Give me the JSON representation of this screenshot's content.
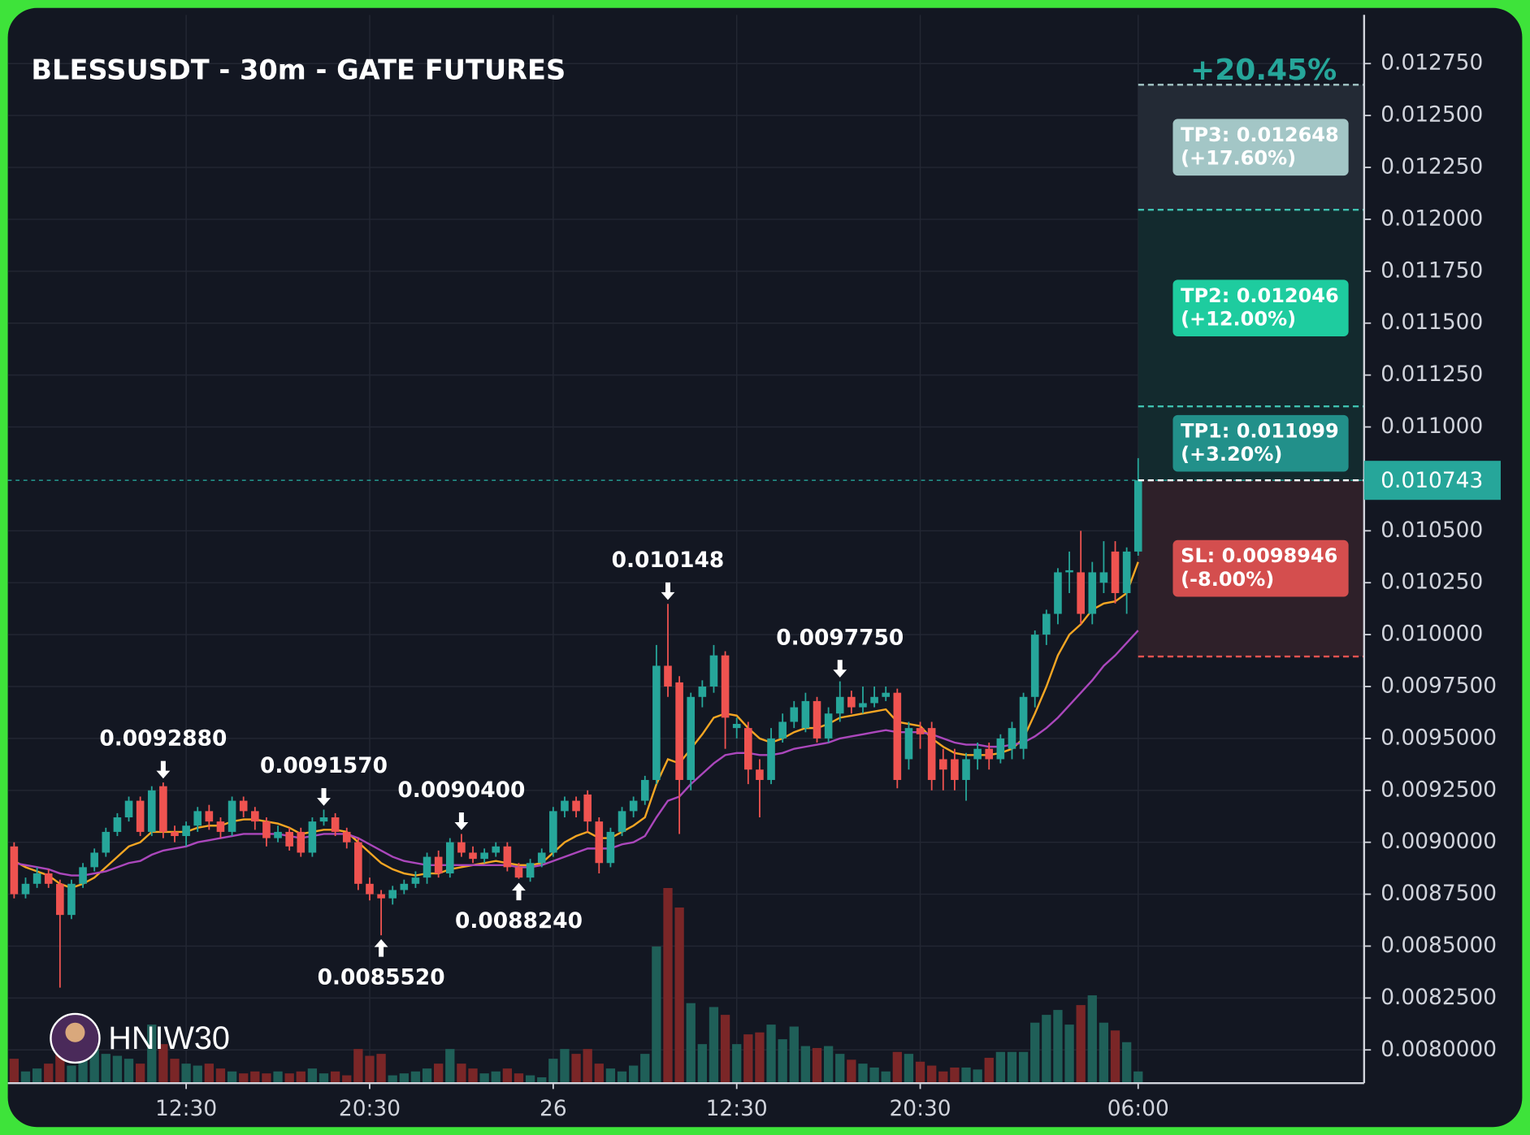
{
  "chart_data": {
    "type": "candlestick",
    "title": "BLESSUSDT - 30m - GATE FUTURES",
    "watermark": "HNIW30",
    "open": [
      0.00898,
      0.00875,
      0.0088,
      0.00885,
      0.0088,
      0.00865,
      0.0088,
      0.00888,
      0.00895,
      0.00905,
      0.00912,
      0.0092,
      0.00905,
      0.00927,
      0.00905,
      0.00903,
      0.00908,
      0.00915,
      0.0091,
      0.00905,
      0.0092,
      0.00915,
      0.0091,
      0.00902,
      0.00905,
      0.00905,
      0.00895,
      0.0091,
      0.00912,
      0.00905,
      0.009,
      0.0088,
      0.00875,
      0.00873,
      0.00877,
      0.0088,
      0.00883,
      0.00893,
      0.00885,
      0.009,
      0.00895,
      0.00892,
      0.00895,
      0.00898,
      0.00888,
      0.00883,
      0.0089,
      0.00895,
      0.00915,
      0.0092,
      0.00923,
      0.0091,
      0.0089,
      0.00905,
      0.00915,
      0.0092,
      0.0093,
      0.00985,
      0.00977,
      0.0093,
      0.0097,
      0.00975,
      0.0099,
      0.00955,
      0.00955,
      0.00935,
      0.0093,
      0.0095,
      0.00958,
      0.00955,
      0.00968,
      0.0095,
      0.00962,
      0.0097,
      0.00965,
      0.00967,
      0.0097,
      0.00972,
      0.0094,
      0.00955,
      0.00955,
      0.0094,
      0.0094,
      0.0093,
      0.0094,
      0.00945,
      0.0094,
      0.00945,
      0.00945,
      0.0097,
      0.01,
      0.0101,
      0.0103,
      0.0103,
      0.0101,
      0.01025,
      0.0104,
      0.0102,
      0.0104
    ],
    "high": [
      0.009,
      0.00883,
      0.00888,
      0.00887,
      0.00882,
      0.00882,
      0.0089,
      0.00897,
      0.00907,
      0.00914,
      0.00922,
      0.00922,
      0.00927,
      0.009288,
      0.00908,
      0.0091,
      0.00917,
      0.00918,
      0.00912,
      0.00922,
      0.00922,
      0.00917,
      0.00912,
      0.00908,
      0.00907,
      0.00907,
      0.00912,
      0.009157,
      0.00914,
      0.00907,
      0.00902,
      0.00883,
      0.00877,
      0.00879,
      0.00882,
      0.00886,
      0.00895,
      0.00896,
      0.00902,
      0.00904,
      0.00898,
      0.00897,
      0.009,
      0.009,
      0.0089,
      0.00892,
      0.00897,
      0.00917,
      0.00922,
      0.00922,
      0.00925,
      0.00912,
      0.00907,
      0.00917,
      0.00922,
      0.00932,
      0.00995,
      0.010148,
      0.0098,
      0.00972,
      0.00978,
      0.00995,
      0.00992,
      0.0096,
      0.00958,
      0.0094,
      0.00955,
      0.00962,
      0.00968,
      0.00972,
      0.0097,
      0.00965,
      0.009775,
      0.00973,
      0.00975,
      0.00975,
      0.00975,
      0.00974,
      0.00958,
      0.00958,
      0.00958,
      0.00945,
      0.00945,
      0.00943,
      0.00948,
      0.00948,
      0.00952,
      0.00958,
      0.00972,
      0.01002,
      0.01012,
      0.01032,
      0.0104,
      0.0105,
      0.01035,
      0.01045,
      0.01045,
      0.01042,
      0.01085
    ],
    "low": [
      0.00873,
      0.00873,
      0.00878,
      0.00878,
      0.0083,
      0.00863,
      0.00878,
      0.00886,
      0.00893,
      0.00903,
      0.0091,
      0.00903,
      0.00903,
      0.00902,
      0.009,
      0.00898,
      0.00905,
      0.00906,
      0.00902,
      0.00903,
      0.00912,
      0.00906,
      0.00898,
      0.009,
      0.00896,
      0.00893,
      0.00893,
      0.00908,
      0.00903,
      0.00897,
      0.00877,
      0.00872,
      0.008552,
      0.0087,
      0.00875,
      0.00878,
      0.0088,
      0.00883,
      0.00883,
      0.00893,
      0.0089,
      0.0089,
      0.00893,
      0.00886,
      0.008824,
      0.00881,
      0.00888,
      0.00893,
      0.00912,
      0.00912,
      0.00905,
      0.00885,
      0.00888,
      0.00903,
      0.00912,
      0.00918,
      0.00928,
      0.0097,
      0.00904,
      0.00925,
      0.00965,
      0.00972,
      0.00945,
      0.0095,
      0.00928,
      0.00912,
      0.00928,
      0.00948,
      0.00955,
      0.00953,
      0.00948,
      0.00948,
      0.00958,
      0.00962,
      0.00962,
      0.00965,
      0.00968,
      0.00926,
      0.00935,
      0.00945,
      0.00925,
      0.00925,
      0.00925,
      0.0092,
      0.00935,
      0.00935,
      0.00938,
      0.0094,
      0.0094,
      0.00965,
      0.00995,
      0.01005,
      0.0102,
      0.01005,
      0.01005,
      0.0102,
      0.01015,
      0.0101,
      0.01038
    ],
    "close": [
      0.00875,
      0.0088,
      0.00885,
      0.0088,
      0.00865,
      0.0088,
      0.00888,
      0.00895,
      0.00905,
      0.00912,
      0.0092,
      0.00905,
      0.00925,
      0.00905,
      0.00903,
      0.00908,
      0.00915,
      0.0091,
      0.00905,
      0.0092,
      0.00915,
      0.0091,
      0.00902,
      0.00905,
      0.00898,
      0.00895,
      0.0091,
      0.00912,
      0.00905,
      0.009,
      0.0088,
      0.00875,
      0.00873,
      0.00877,
      0.0088,
      0.00883,
      0.00893,
      0.00885,
      0.009,
      0.00895,
      0.00892,
      0.00895,
      0.00898,
      0.00888,
      0.00883,
      0.0089,
      0.00895,
      0.00915,
      0.0092,
      0.00915,
      0.0091,
      0.0089,
      0.00905,
      0.00915,
      0.0092,
      0.0093,
      0.00985,
      0.00975,
      0.0093,
      0.0097,
      0.00975,
      0.0099,
      0.0096,
      0.00957,
      0.00935,
      0.0093,
      0.0095,
      0.00958,
      0.00965,
      0.00968,
      0.0095,
      0.00962,
      0.0097,
      0.00965,
      0.00967,
      0.0097,
      0.00972,
      0.0093,
      0.00955,
      0.00952,
      0.0093,
      0.00935,
      0.0093,
      0.0094,
      0.00945,
      0.0094,
      0.0095,
      0.00955,
      0.0097,
      0.01,
      0.0101,
      0.0103,
      0.01031,
      0.0101,
      0.0103,
      0.0103,
      0.0102,
      0.0104,
      0.010743
    ],
    "volume": [
      25,
      12,
      15,
      20,
      30,
      18,
      25,
      35,
      30,
      28,
      25,
      20,
      60,
      40,
      25,
      20,
      18,
      20,
      15,
      12,
      10,
      12,
      10,
      12,
      10,
      12,
      15,
      10,
      12,
      8,
      35,
      28,
      30,
      8,
      10,
      12,
      15,
      20,
      35,
      20,
      15,
      10,
      12,
      15,
      10,
      8,
      6,
      25,
      35,
      30,
      35,
      20,
      15,
      12,
      18,
      30,
      140,
      200,
      180,
      82,
      40,
      78,
      70,
      40,
      50,
      52,
      60,
      45,
      58,
      38,
      36,
      38,
      30,
      24,
      20,
      16,
      12,
      32,
      30,
      22,
      18,
      12,
      16,
      16,
      14,
      26,
      32,
      32,
      32,
      62,
      70,
      75,
      60,
      80,
      90,
      62,
      54,
      42,
      12
    ],
    "vlim": [
      0,
      230
    ],
    "moving_averages": [
      {
        "color": "#f5a623",
        "values": [
          0.00891,
          0.00888,
          0.00886,
          0.00884,
          0.0088,
          0.00878,
          0.0088,
          0.00883,
          0.00888,
          0.00893,
          0.00898,
          0.009,
          0.00905,
          0.00905,
          0.00905,
          0.00905,
          0.00907,
          0.00908,
          0.00908,
          0.0091,
          0.00911,
          0.00911,
          0.0091,
          0.00909,
          0.00907,
          0.00904,
          0.00905,
          0.00906,
          0.00906,
          0.00905,
          0.009,
          0.00895,
          0.0089,
          0.00887,
          0.00885,
          0.00884,
          0.00885,
          0.00885,
          0.00887,
          0.00888,
          0.00889,
          0.0089,
          0.00891,
          0.0089,
          0.00889,
          0.00889,
          0.0089,
          0.00895,
          0.009,
          0.00903,
          0.00905,
          0.00902,
          0.00902,
          0.00905,
          0.00908,
          0.00912,
          0.00928,
          0.0094,
          0.00938,
          0.00945,
          0.00952,
          0.0096,
          0.00962,
          0.00961,
          0.00955,
          0.0095,
          0.00948,
          0.0095,
          0.00953,
          0.00955,
          0.00955,
          0.00957,
          0.0096,
          0.00961,
          0.00962,
          0.00963,
          0.00964,
          0.00958,
          0.00957,
          0.00956,
          0.0095,
          0.00946,
          0.00943,
          0.00942,
          0.00942,
          0.00942,
          0.00943,
          0.00945,
          0.0095,
          0.00962,
          0.00975,
          0.0099,
          0.01,
          0.01005,
          0.01012,
          0.01015,
          0.01016,
          0.0102,
          0.01035
        ]
      },
      {
        "color": "#ab47bc",
        "values": [
          0.0089,
          0.00889,
          0.00888,
          0.00887,
          0.00885,
          0.00884,
          0.00884,
          0.00885,
          0.00886,
          0.00888,
          0.0089,
          0.00891,
          0.00894,
          0.00896,
          0.00897,
          0.00898,
          0.009,
          0.00901,
          0.00902,
          0.00903,
          0.00904,
          0.00904,
          0.00904,
          0.00904,
          0.00903,
          0.00902,
          0.00903,
          0.00904,
          0.00904,
          0.00904,
          0.00902,
          0.00899,
          0.00896,
          0.00893,
          0.00891,
          0.0089,
          0.00889,
          0.00889,
          0.00889,
          0.00889,
          0.00889,
          0.00889,
          0.00889,
          0.00889,
          0.00888,
          0.00888,
          0.00889,
          0.00891,
          0.00893,
          0.00895,
          0.00897,
          0.00897,
          0.00897,
          0.00899,
          0.009,
          0.00903,
          0.00912,
          0.0092,
          0.00922,
          0.00928,
          0.00933,
          0.00938,
          0.00942,
          0.00943,
          0.00943,
          0.00942,
          0.00942,
          0.00943,
          0.00945,
          0.00946,
          0.00947,
          0.00948,
          0.0095,
          0.00951,
          0.00952,
          0.00953,
          0.00954,
          0.00953,
          0.00953,
          0.00953,
          0.00952,
          0.0095,
          0.00948,
          0.00947,
          0.00947,
          0.00946,
          0.00946,
          0.00947,
          0.00948,
          0.00951,
          0.00955,
          0.0096,
          0.00966,
          0.00972,
          0.00978,
          0.00985,
          0.0099,
          0.00996,
          0.01002
        ]
      }
    ],
    "up_color": "#26a69a",
    "down_color": "#ef5350",
    "xlim": [
      -0.55,
      117.7
    ],
    "xticks": [
      {
        "value": 15,
        "label": "12:30"
      },
      {
        "value": 31,
        "label": "20:30"
      },
      {
        "value": 47,
        "label": "26"
      },
      {
        "value": 63,
        "label": "12:30"
      },
      {
        "value": 79,
        "label": "20:30"
      },
      {
        "value": 98,
        "label": "06:00"
      }
    ],
    "ylim": [
      0.00784,
      0.012985
    ],
    "yticks": [
      {
        "value": 0.008,
        "label": "0.0080000"
      },
      {
        "value": 0.00825,
        "label": "0.0082500"
      },
      {
        "value": 0.0085,
        "label": "0.0085000"
      },
      {
        "value": 0.00875,
        "label": "0.0087500"
      },
      {
        "value": 0.009,
        "label": "0.0090000"
      },
      {
        "value": 0.00925,
        "label": "0.0092500"
      },
      {
        "value": 0.0095,
        "label": "0.0095000"
      },
      {
        "value": 0.00975,
        "label": "0.0097500"
      },
      {
        "value": 0.01,
        "label": "0.010000"
      },
      {
        "value": 0.01025,
        "label": "0.010250"
      },
      {
        "value": 0.0105,
        "label": "0.010500"
      },
      {
        "value": 0.011,
        "label": "0.011000"
      },
      {
        "value": 0.01125,
        "label": "0.011250"
      },
      {
        "value": 0.0115,
        "label": "0.011500"
      },
      {
        "value": 0.01175,
        "label": "0.011750"
      },
      {
        "value": 0.012,
        "label": "0.012000"
      },
      {
        "value": 0.01225,
        "label": "0.012250"
      },
      {
        "value": 0.0125,
        "label": "0.012500"
      },
      {
        "value": 0.01275,
        "label": "0.012750"
      }
    ],
    "grid": true,
    "last_price": 0.010743,
    "annotations": [
      {
        "value": 0.009288,
        "label": "0.0092880"
      },
      {
        "value": 0.009157,
        "label": "0.0091570"
      },
      {
        "value": 0.008552,
        "label": "0.0085520"
      },
      {
        "value": 0.008824,
        "label": "0.0088240"
      },
      {
        "value": 0.010148,
        "label": "0.010148"
      },
      {
        "value": 0.00904,
        "label": "0.0090400"
      },
      {
        "value": 0.009775,
        "label": "0.0097750"
      }
    ],
    "levels": [
      {
        "value": 0.011099,
        "label": [
          "TP1: 0.011099",
          "(+3.20%)"
        ],
        "color": "#22908a",
        "line_color": "#3fc1b0",
        "zone_color": "#132a2e"
      },
      {
        "value": 0.012046,
        "label": [
          "TP2: 0.012046",
          "(+12.00%)"
        ],
        "color": "#1ecc9f",
        "line_color": "#3fc1b0",
        "zone_color": "#132a2e"
      },
      {
        "value": 0.012648,
        "label": [
          "TP3: 0.012648",
          "(+17.60%)"
        ],
        "color": "#a3c6c6",
        "line_color": "#a3c6c6",
        "zone_color": "#232a35"
      },
      {
        "value": 0.0098946,
        "label": [
          "SL: 0.0098946",
          "(-8.00%)"
        ],
        "color": "#d44e4e",
        "line_color": "#ef5350",
        "zone_color": "#2e2029"
      }
    ],
    "top_change": "+20.45%"
  }
}
